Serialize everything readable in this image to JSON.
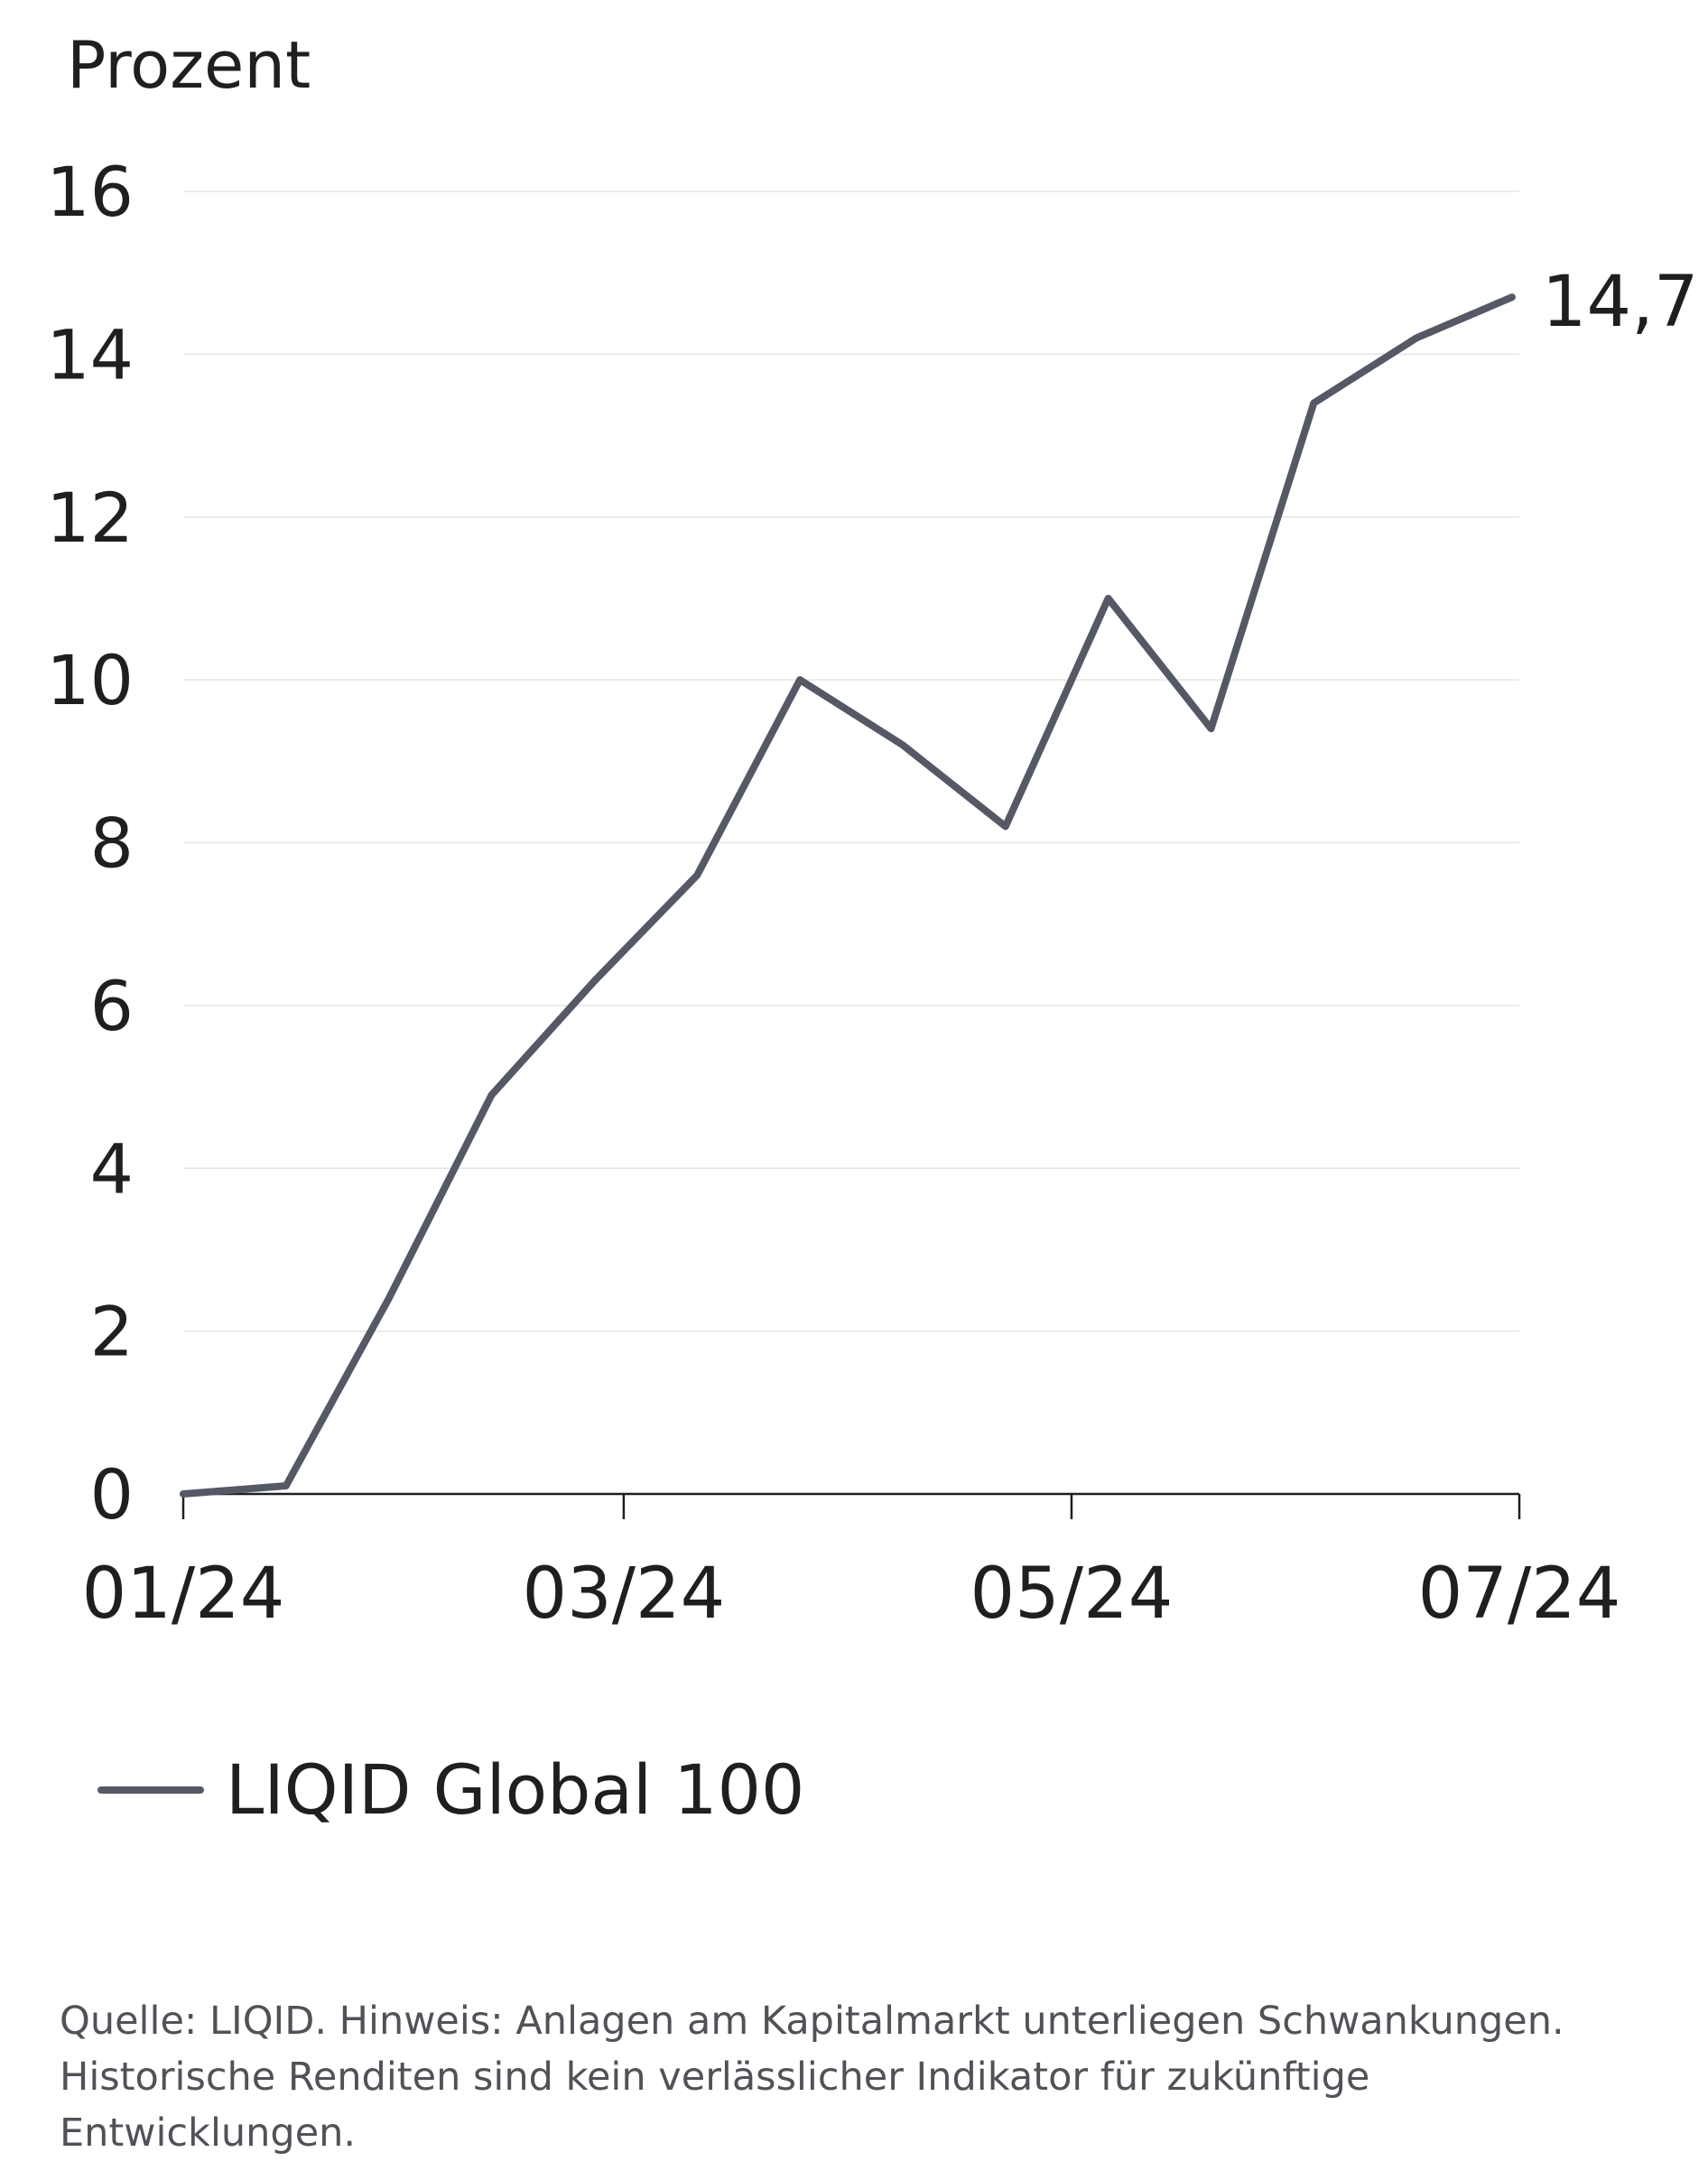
{
  "chart_data": {
    "type": "line",
    "ylabel": "Prozent",
    "ylim": [
      0,
      16
    ],
    "yticks": [
      0,
      2,
      4,
      6,
      8,
      10,
      12,
      14,
      16
    ],
    "ytick_labels": [
      "0",
      "2",
      "4",
      "6",
      "8",
      "10",
      "12",
      "14",
      "16"
    ],
    "xlim": [
      "2024-01",
      "2024-07"
    ],
    "xticks": [
      "2024-01",
      "2024-03",
      "2024-05",
      "2024-07"
    ],
    "xtick_labels": [
      "01/24",
      "03/24",
      "05/24",
      "07/24"
    ],
    "grid": "horizontal",
    "legend_position": "bottom-left",
    "series": [
      {
        "name": "LIQID Global 100",
        "color": "#555865",
        "x": [
          "2024-01-01",
          "2024-01-15",
          "2024-01-29",
          "2024-02-12",
          "2024-02-26",
          "2024-03-11",
          "2024-03-25",
          "2024-04-08",
          "2024-04-22",
          "2024-05-06",
          "2024-05-20",
          "2024-06-03",
          "2024-06-17",
          "2024-06-30"
        ],
        "y": [
          0,
          0.1,
          2.4,
          4.9,
          6.3,
          7.6,
          10.0,
          9.2,
          8.2,
          11.0,
          9.4,
          13.4,
          14.2,
          14.7
        ]
      }
    ],
    "annotations": [
      {
        "text": "14,7",
        "x": "2024-06-30",
        "y": 14.7
      }
    ]
  },
  "footnote": "Quelle: LIQID. Hinweis: Anlagen am Kapitalmarkt unterliegen Schwankungen. Historische Renditen sind kein verlässlicher Indikator für zukünftige Entwicklungen."
}
